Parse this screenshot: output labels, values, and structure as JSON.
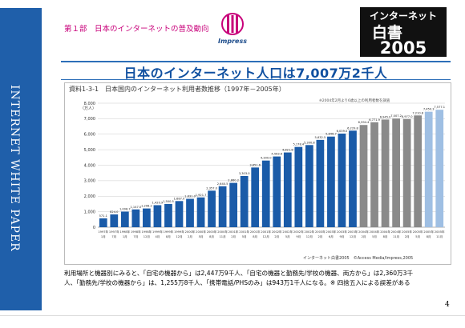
{
  "sidebar": {
    "label": "INTERNET WHITE PAPER"
  },
  "header": {
    "chapter": "第１部　日本のインターネットの普及動向",
    "publisher_logo_text": "Impress",
    "book_logo_line1": "インターネット",
    "book_logo_line2": "白書",
    "book_logo_year": "2005"
  },
  "main": {
    "title": "日本のインターネット人口は7,007万2千人"
  },
  "chart_heading": "資料1-3-1　日本国内のインターネット利用者数推移（1997年－2005年）",
  "chart_note": "※2004年2月より6歳以上の利用者数を調査",
  "source": "インターネット白書2005　©Access Media/Impress,2005",
  "footer": {
    "line1": "利用場所と機器別にみると、「自宅の機器から」は2,447万9千人、「自宅の機器と勤務先/学校の機器、両方から」は2,360万3千",
    "line2": "人、「勤務先/学校の機器から」は、1,255万8千人、「携帯電話/PHSのみ」は943万1千人になる。※ 四捨五入による誤差がある"
  },
  "page": {
    "number": "4"
  },
  "colors": {
    "sidebar": "#1f5faa",
    "bar_dark": "#1a5ba8",
    "bar_light": "#9fbfe3",
    "bar_gray": "#8a8a8a"
  },
  "chart_data": {
    "type": "bar",
    "title": "資料1-3-1　日本国内のインターネット利用者数推移（1997年－2005年）",
    "ylabel": "（万人）",
    "ylim": [
      0,
      8000
    ],
    "yticks": [
      "0",
      "1,000",
      "2,000",
      "3,000",
      "4,000",
      "5,000",
      "6,000",
      "7,000",
      "8,000"
    ],
    "grid": true,
    "categories": [
      "1997年1月",
      "1997年7月",
      "1998年1月",
      "1998年7月",
      "1998年12月",
      "1999年4月",
      "1999年8月",
      "1999年12月",
      "2000年2月",
      "2000年5月",
      "2000年8月",
      "2000年11月",
      "2001年2月",
      "2001年5月",
      "2001年8月",
      "2001年12月",
      "2002年2月",
      "2002年5月",
      "2002年9月",
      "2002年12月",
      "2003年2月",
      "2003年6月",
      "2003年9月",
      "2003年12月",
      "2004年2月",
      "2004年5月",
      "2004年8月",
      "2004年11月",
      "2005年2月",
      "2005年5月",
      "2005年8月",
      "2005年11月"
    ],
    "values": [
      571.1,
      824.0,
      1008.7,
      1147.0,
      1208.2,
      1420.9,
      1500.5,
      1687.0,
      1831.0,
      1921.7,
      2357.0,
      2640.5,
      2860.2,
      3303.0,
      3851.6,
      4300.0,
      4563.6,
      4821.8,
      5178.4,
      5300.8,
      5632.5,
      5846.7,
      6039.0,
      6229.8,
      6594.4,
      6771.9,
      6945.0,
      7007.2,
      6977.0,
      7210.8,
      7450.3,
      7577.1
    ],
    "bar_value_labels": [
      "571.1",
      "824.0",
      "1,008.7",
      "1,147.0",
      "1,208.2",
      "1,420.9",
      "1,500.5",
      "1,687.0",
      "1,831.0",
      "1,921.7",
      "2,357.0",
      "2,640.5",
      "2,860.2",
      "3,303.0",
      "3,851.6",
      "4,300.0",
      "4,563.6",
      "4,821.8",
      "5,178.4",
      "5,300.8",
      "5,632.5",
      "5,846.7",
      "6,039.0",
      "6,229.8",
      "6,594.4",
      "6,771.9",
      "6,945.0",
      "7,007.2",
      "6,977.0",
      "7,210.8",
      "7,450.3",
      "7,577.1"
    ],
    "bar_groups": [
      "dark",
      "dark",
      "dark",
      "dark",
      "dark",
      "dark",
      "dark",
      "dark",
      "dark",
      "dark",
      "dark",
      "dark",
      "dark",
      "dark",
      "dark",
      "dark",
      "dark",
      "dark",
      "dark",
      "dark",
      "dark",
      "dark",
      "dark",
      "dark",
      "gray",
      "gray",
      "gray",
      "gray",
      "gray",
      "gray",
      "light",
      "light"
    ]
  }
}
